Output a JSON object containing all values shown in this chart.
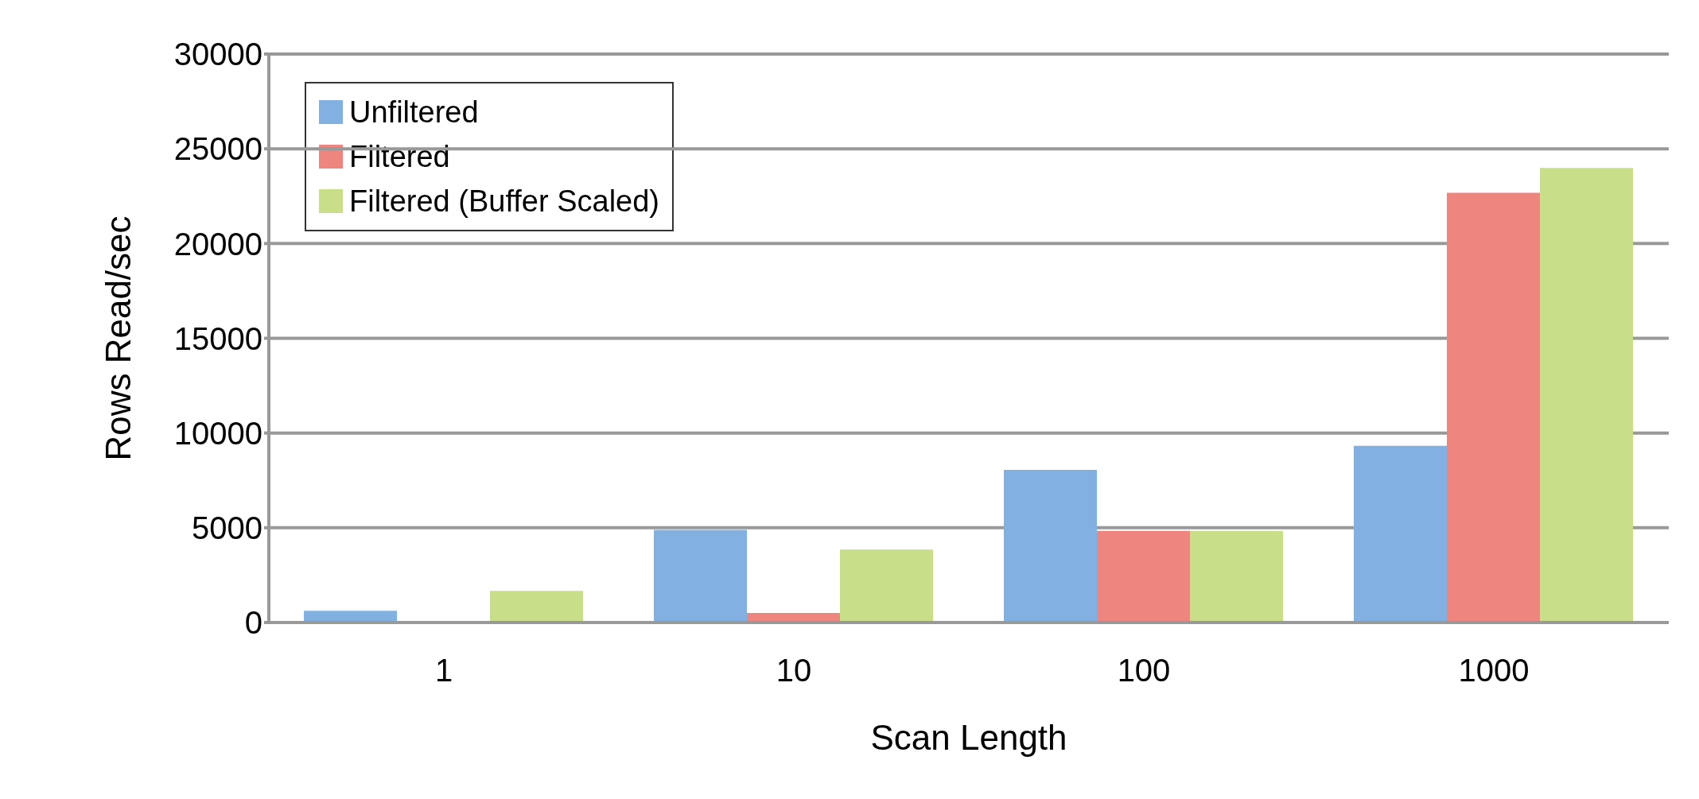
{
  "chart_data": {
    "type": "bar",
    "xlabel": "Scan Length",
    "ylabel": "Rows Read/sec",
    "categories": [
      "1",
      "10",
      "100",
      "1000"
    ],
    "series": [
      {
        "name": "Unfiltered",
        "color": "#82b0e0",
        "values": [
          620,
          4890,
          8060,
          9320
        ]
      },
      {
        "name": "Filtered",
        "color": "#ee857e",
        "values": [
          0,
          500,
          4840,
          22680
        ]
      },
      {
        "name": "Filtered (Buffer Scaled)",
        "color": "#c8de88",
        "values": [
          1670,
          3850,
          4840,
          23990
        ]
      }
    ],
    "ylim": [
      0,
      30000
    ],
    "yticks": [
      0,
      5000,
      10000,
      15000,
      20000,
      25000,
      30000
    ],
    "grid": "y",
    "legend": "top left"
  }
}
